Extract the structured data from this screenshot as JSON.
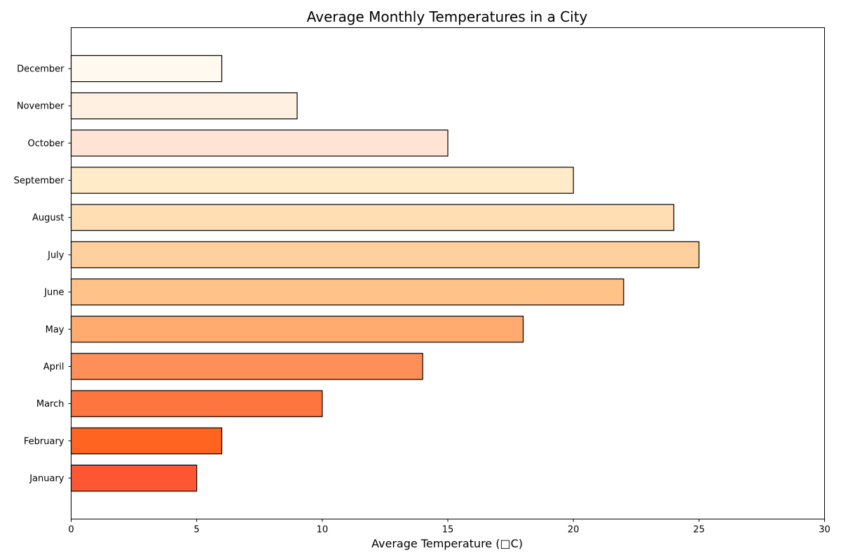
{
  "chart_data": {
    "type": "bar",
    "orientation": "horizontal",
    "title": "Average Monthly Temperatures in a City",
    "xlabel": "Average Temperature (□C)",
    "ylabel": "",
    "xlim": [
      0,
      30
    ],
    "xticks": [
      0,
      5,
      10,
      15,
      20,
      25,
      30
    ],
    "grid": false,
    "legend": "none",
    "categories": [
      "January",
      "February",
      "March",
      "April",
      "May",
      "June",
      "July",
      "August",
      "September",
      "October",
      "November",
      "December"
    ],
    "values": [
      5,
      6,
      10,
      14,
      18,
      22,
      25,
      24,
      20,
      15,
      9,
      6
    ],
    "colors": [
      "#FF5733",
      "#FF6420",
      "#FF7540",
      "#FF8F59",
      "#FFAB70",
      "#FFC288",
      "#FFD09D",
      "#FFDEB3",
      "#FFEBC8",
      "#FFE4D6",
      "#FFF0E2",
      "#FFF9EF"
    ],
    "edge_color": "#000000"
  }
}
